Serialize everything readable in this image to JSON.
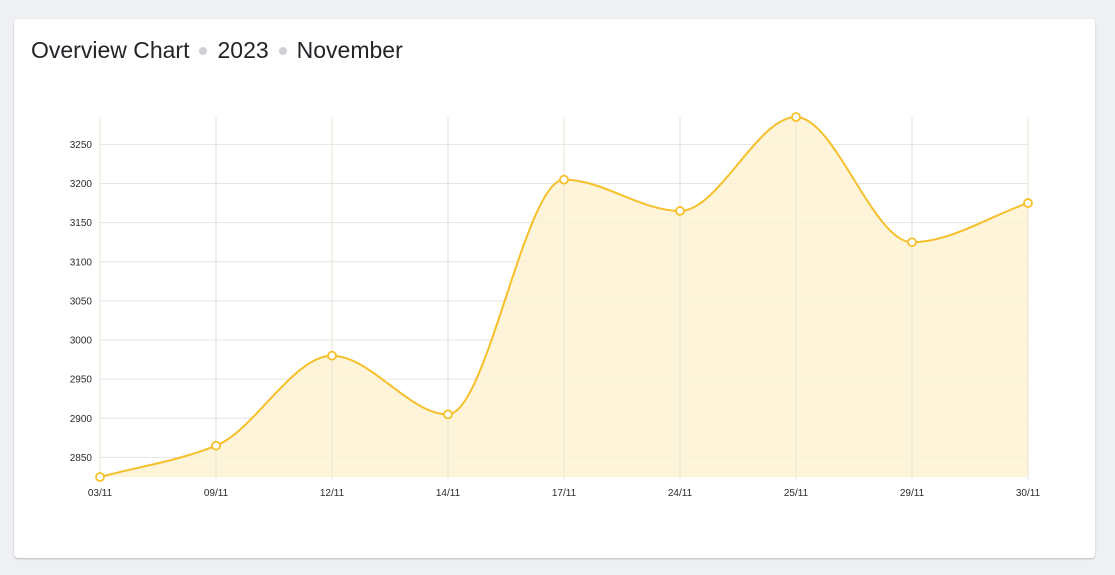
{
  "header": {
    "title": "Overview Chart",
    "year": "2023",
    "month": "November"
  },
  "chart_data": {
    "type": "area",
    "title": "Overview Chart",
    "categories": [
      "03/11",
      "09/11",
      "12/11",
      "14/11",
      "17/11",
      "24/11",
      "25/11",
      "29/11",
      "30/11"
    ],
    "values": [
      2825,
      2865,
      2980,
      2905,
      3205,
      3165,
      3285,
      3125,
      3175
    ],
    "y_ticks": [
      2850,
      2900,
      2950,
      3000,
      3050,
      3100,
      3150,
      3200,
      3250
    ],
    "ylim": [
      2825,
      3285
    ],
    "xlabel": "",
    "ylabel": "",
    "grid": true,
    "legend": "none",
    "colors": {
      "line": "#f5c02b",
      "fill": "#fdf2d2",
      "marker_fill": "#ffffff",
      "grid": "#e4e4e4"
    }
  }
}
